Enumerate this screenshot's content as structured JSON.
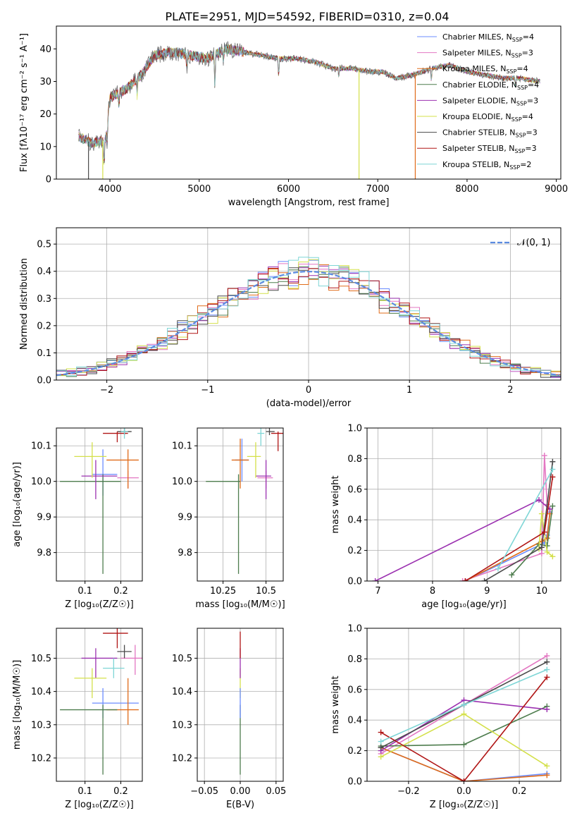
{
  "colors": {
    "chabrier_miles": "#6b8cff",
    "salpeter_miles": "#e377c2",
    "kroupa_miles": "#e06c1a",
    "chabrier_elodie": "#4e7d4e",
    "salpeter_elodie": "#9b30b0",
    "kroupa_elodie": "#d4e04a",
    "chabrier_stelib": "#4a4a4a",
    "salpeter_stelib": "#b01515",
    "kroupa_stelib": "#7fd6d6"
  },
  "chart_data": [
    {
      "id": "spectrum",
      "type": "line",
      "title": "PLATE=2951, MJD=54592, FIBERID=0310, z=0.04",
      "xlabel": "wavelength [Angstrom, rest frame]",
      "ylabel": "Flux [f$_\\lambda$10$^{-17}$ erg cm$^{-2}$ s$^{-1}$ A$^{-1}$]",
      "ylabel_display": "Flux [fλ10⁻¹⁷ erg cm⁻² s⁻¹ A⁻¹]",
      "xlim": [
        3400,
        9050
      ],
      "ylim": [
        0,
        47
      ],
      "xticks": [
        4000,
        5000,
        6000,
        7000,
        8000,
        9000
      ],
      "yticks": [
        0,
        10,
        20,
        30,
        40
      ],
      "grid": false,
      "legend_position": "top-right",
      "legend": [
        {
          "label": "Chabrier MILES, N",
          "sub": "SSP",
          "tail": "=4",
          "color_key": "chabrier_miles"
        },
        {
          "label": "Salpeter MILES, N",
          "sub": "SSP",
          "tail": "=3",
          "color_key": "salpeter_miles"
        },
        {
          "label": "Kroupa MILES, N",
          "sub": "SSP",
          "tail": "=4",
          "color_key": "kroupa_miles"
        },
        {
          "label": "Chabrier ELODIE, N",
          "sub": "SSP",
          "tail": "=4",
          "color_key": "chabrier_elodie"
        },
        {
          "label": "Salpeter ELODIE, N",
          "sub": "SSP",
          "tail": "=3",
          "color_key": "salpeter_elodie"
        },
        {
          "label": "Kroupa ELODIE, N",
          "sub": "SSP",
          "tail": "=4",
          "color_key": "kroupa_elodie"
        },
        {
          "label": "Chabrier STELIB, N",
          "sub": "SSP",
          "tail": "=3",
          "color_key": "chabrier_stelib"
        },
        {
          "label": "Salpeter STELIB, N",
          "sub": "SSP",
          "tail": "=3",
          "color_key": "salpeter_stelib"
        },
        {
          "label": "Kroupa STELIB, N",
          "sub": "SSP",
          "tail": "=2",
          "color_key": "kroupa_stelib"
        }
      ],
      "continuum": [
        [
          3650,
          13
        ],
        [
          3800,
          11
        ],
        [
          3950,
          12
        ],
        [
          4000,
          25
        ],
        [
          4200,
          28
        ],
        [
          4350,
          32
        ],
        [
          4500,
          38
        ],
        [
          4700,
          39
        ],
        [
          4900,
          38
        ],
        [
          5100,
          37
        ],
        [
          5300,
          40
        ],
        [
          5500,
          39
        ],
        [
          5700,
          38
        ],
        [
          5900,
          37
        ],
        [
          6100,
          37
        ],
        [
          6300,
          36
        ],
        [
          6500,
          34
        ],
        [
          6700,
          34
        ],
        [
          6900,
          33
        ],
        [
          7050,
          33
        ],
        [
          7200,
          31
        ],
        [
          7400,
          32
        ],
        [
          7600,
          34
        ],
        [
          7800,
          35
        ],
        [
          8000,
          33
        ],
        [
          8200,
          32
        ],
        [
          8400,
          31
        ],
        [
          8600,
          31
        ],
        [
          8800,
          30
        ]
      ],
      "spikes_to_zero": [
        {
          "x": 3760,
          "color_key": "chabrier_stelib"
        },
        {
          "x": 3920,
          "color_key": "kroupa_elodie"
        },
        {
          "x": 6790,
          "color_key": "kroupa_elodie"
        },
        {
          "x": 7420,
          "color_key": "kroupa_miles"
        }
      ]
    },
    {
      "id": "residuals",
      "type": "step-histogram",
      "xlabel": "(data-model)/error",
      "ylabel": "Normed distribution",
      "xlim": [
        -2.5,
        2.5
      ],
      "ylim": [
        0,
        0.56
      ],
      "xticks": [
        -2,
        -1,
        0,
        1,
        2
      ],
      "yticks": [
        0.0,
        0.1,
        0.2,
        0.3,
        0.4,
        0.5
      ],
      "grid": true,
      "legend_position": "top-right",
      "legend_label": "𝒩(0, 1)",
      "bin_width": 0.1,
      "reference_curve": {
        "type": "gaussian",
        "mean": 0,
        "sigma": 1,
        "color": "#5b8be0"
      }
    },
    {
      "id": "z-age",
      "type": "errorbar",
      "xlabel": "Z [log₁₀(Z/Z☉)]",
      "ylabel": "age  [log₁₀(age/yr)]",
      "xlim": [
        0.02,
        0.26
      ],
      "ylim": [
        9.72,
        10.15
      ],
      "xticks": [
        0.1,
        0.2
      ],
      "yticks": [
        9.8,
        9.9,
        10.0,
        10.1
      ],
      "grid": true,
      "points": [
        {
          "k": "chabrier_miles",
          "x": 0.15,
          "xe": [
            0.12,
            0.19
          ],
          "y": 10.02,
          "ye": [
            9.96,
            10.09
          ]
        },
        {
          "k": "salpeter_miles",
          "x": 0.22,
          "xe": [
            0.19,
            0.25
          ],
          "y": 10.01,
          "ye": [
            9.98,
            10.03
          ]
        },
        {
          "k": "kroupa_miles",
          "x": 0.22,
          "xe": [
            0.16,
            0.25
          ],
          "y": 10.06,
          "ye": [
            9.98,
            10.09
          ]
        },
        {
          "k": "chabrier_elodie",
          "x": 0.15,
          "xe": [
            0.03,
            0.2
          ],
          "y": 10.0,
          "ye": [
            9.74,
            10.02
          ]
        },
        {
          "k": "salpeter_elodie",
          "x": 0.13,
          "xe": [
            0.09,
            0.19
          ],
          "y": 10.015,
          "ye": [
            9.95,
            10.06
          ]
        },
        {
          "k": "kroupa_elodie",
          "x": 0.12,
          "xe": [
            0.07,
            0.16
          ],
          "y": 10.07,
          "ye": [
            10.01,
            10.11
          ]
        },
        {
          "k": "chabrier_stelib",
          "x": 0.21,
          "xe": [
            0.19,
            0.23
          ],
          "y": 10.14,
          "ye": [
            10.13,
            10.15
          ]
        },
        {
          "k": "salpeter_stelib",
          "x": 0.19,
          "xe": [
            0.15,
            0.22
          ],
          "y": 10.135,
          "ye": [
            10.11,
            10.14
          ]
        },
        {
          "k": "kroupa_stelib",
          "x": 0.21,
          "xe": [
            0.2,
            0.22
          ],
          "y": 10.14,
          "ye": [
            10.12,
            10.15
          ]
        }
      ]
    },
    {
      "id": "mass-age",
      "type": "errorbar",
      "xlabel": "mass [log₁₀(M/M☉)]",
      "ylabel": "",
      "xlim": [
        10.1,
        10.6
      ],
      "ylim": [
        9.72,
        10.15
      ],
      "xticks": [
        10.25,
        10.5
      ],
      "yticks": [
        9.8,
        9.9,
        10.0,
        10.1
      ],
      "grid": true,
      "points": [
        {
          "k": "chabrier_miles",
          "x": 10.36,
          "xe": [
            10.32,
            10.4
          ],
          "y": 10.06,
          "ye": [
            10.0,
            10.12
          ]
        },
        {
          "k": "salpeter_miles",
          "x": 10.5,
          "xe": [
            10.45,
            10.54
          ],
          "y": 10.01,
          "ye": [
            9.98,
            10.03
          ]
        },
        {
          "k": "kroupa_miles",
          "x": 10.35,
          "xe": [
            10.3,
            10.4
          ],
          "y": 10.06,
          "ye": [
            9.98,
            10.12
          ]
        },
        {
          "k": "chabrier_elodie",
          "x": 10.34,
          "xe": [
            10.15,
            10.35
          ],
          "y": 10.0,
          "ye": [
            9.74,
            10.02
          ]
        },
        {
          "k": "salpeter_elodie",
          "x": 10.5,
          "xe": [
            10.44,
            10.53
          ],
          "y": 10.015,
          "ye": [
            9.95,
            10.06
          ]
        },
        {
          "k": "kroupa_elodie",
          "x": 10.44,
          "xe": [
            10.39,
            10.47
          ],
          "y": 10.07,
          "ye": [
            10.01,
            10.11
          ]
        },
        {
          "k": "chabrier_stelib",
          "x": 10.52,
          "xe": [
            10.5,
            10.55
          ],
          "y": 10.14,
          "ye": [
            10.13,
            10.15
          ]
        },
        {
          "k": "salpeter_stelib",
          "x": 10.57,
          "xe": [
            10.53,
            10.6
          ],
          "y": 10.135,
          "ye": [
            10.085,
            10.14
          ]
        },
        {
          "k": "kroupa_stelib",
          "x": 10.47,
          "xe": [
            10.45,
            10.49
          ],
          "y": 10.135,
          "ye": [
            10.1,
            10.15
          ]
        }
      ]
    },
    {
      "id": "age-weight",
      "type": "line",
      "xlabel": "age  [log₁₀(age/yr)]",
      "ylabel": "mass weight",
      "xlim": [
        6.8,
        10.35
      ],
      "ylim": [
        0,
        1.0
      ],
      "xticks": [
        7,
        8,
        9,
        10
      ],
      "yticks": [
        0.0,
        0.2,
        0.4,
        0.6,
        0.8,
        1.0
      ],
      "grid": true,
      "series": [
        {
          "k": "chabrier_miles",
          "x": [
            8.6,
            10.05,
            10.1,
            10.15
          ],
          "y": [
            0.0,
            0.25,
            0.3,
            0.45
          ]
        },
        {
          "k": "salpeter_miles",
          "x": [
            8.55,
            10.0,
            10.05,
            10.1
          ],
          "y": [
            0.0,
            0.18,
            0.82,
            0.5
          ]
        },
        {
          "k": "kroupa_miles",
          "x": [
            8.6,
            10.0,
            10.1,
            10.15
          ],
          "y": [
            0.0,
            0.26,
            0.28,
            0.44
          ]
        },
        {
          "k": "chabrier_elodie",
          "x": [
            9.45,
            9.95,
            10.1,
            10.2
          ],
          "y": [
            0.04,
            0.24,
            0.23,
            0.49
          ]
        },
        {
          "k": "salpeter_elodie",
          "x": [
            6.95,
            9.95,
            10.15
          ],
          "y": [
            0.0,
            0.53,
            0.47
          ]
        },
        {
          "k": "kroupa_elodie",
          "x": [
            9.95,
            10.0,
            10.1,
            10.2
          ],
          "y": [
            0.21,
            0.44,
            0.19,
            0.16
          ]
        },
        {
          "k": "chabrier_stelib",
          "x": [
            8.95,
            10.0,
            10.2
          ],
          "y": [
            0.0,
            0.22,
            0.78
          ]
        },
        {
          "k": "salpeter_stelib",
          "x": [
            8.6,
            10.05,
            10.2
          ],
          "y": [
            0.0,
            0.32,
            0.68
          ]
        },
        {
          "k": "kroupa_stelib",
          "x": [
            9.2,
            10.2
          ],
          "y": [
            0.08,
            0.73
          ]
        }
      ]
    },
    {
      "id": "z-mass",
      "type": "errorbar",
      "xlabel": "Z [log₁₀(Z/Z☉)]",
      "ylabel": "mass [log₁₀(M/M☉)]",
      "xlim": [
        0.02,
        0.26
      ],
      "ylim": [
        10.13,
        10.59
      ],
      "xticks": [
        0.1,
        0.2
      ],
      "yticks": [
        10.2,
        10.3,
        10.4,
        10.5
      ],
      "grid": true,
      "points": [
        {
          "k": "chabrier_miles",
          "x": 0.15,
          "xe": [
            0.12,
            0.25
          ],
          "y": 10.365,
          "ye": [
            10.32,
            10.41
          ]
        },
        {
          "k": "salpeter_miles",
          "x": 0.24,
          "xe": [
            0.2,
            0.26
          ],
          "y": 10.5,
          "ye": [
            10.45,
            10.54
          ]
        },
        {
          "k": "kroupa_miles",
          "x": 0.22,
          "xe": [
            0.16,
            0.25
          ],
          "y": 10.345,
          "ye": [
            10.3,
            10.44
          ]
        },
        {
          "k": "chabrier_elodie",
          "x": 0.15,
          "xe": [
            0.03,
            0.19
          ],
          "y": 10.345,
          "ye": [
            10.15,
            10.36
          ]
        },
        {
          "k": "salpeter_elodie",
          "x": 0.13,
          "xe": [
            0.09,
            0.19
          ],
          "y": 10.5,
          "ye": [
            10.44,
            10.53
          ]
        },
        {
          "k": "kroupa_elodie",
          "x": 0.12,
          "xe": [
            0.07,
            0.16
          ],
          "y": 10.44,
          "ye": [
            10.38,
            10.47
          ]
        },
        {
          "k": "chabrier_stelib",
          "x": 0.21,
          "xe": [
            0.19,
            0.23
          ],
          "y": 10.52,
          "ye": [
            10.5,
            10.54
          ]
        },
        {
          "k": "salpeter_stelib",
          "x": 0.19,
          "xe": [
            0.15,
            0.22
          ],
          "y": 10.575,
          "ye": [
            10.53,
            10.59
          ]
        },
        {
          "k": "kroupa_stelib",
          "x": 0.18,
          "xe": [
            0.15,
            0.21
          ],
          "y": 10.47,
          "ye": [
            10.44,
            10.5
          ]
        }
      ]
    },
    {
      "id": "ebv-mass",
      "type": "errorbar",
      "xlabel": "E(B-V)",
      "ylabel": "",
      "xlim": [
        -0.06,
        0.06
      ],
      "ylim": [
        10.13,
        10.59
      ],
      "xticks": [
        -0.05,
        0.0,
        0.05
      ],
      "xtick_labels": [
        "−0.05",
        "0.00",
        "0.05"
      ],
      "yticks": [
        10.2,
        10.3,
        10.4,
        10.5
      ],
      "grid": true,
      "points": [
        {
          "k": "kroupa_elodie",
          "x": 0.0,
          "xe": [
            0.0,
            0.0
          ],
          "y": 10.44,
          "ye": [
            10.38,
            10.47
          ]
        },
        {
          "k": "salpeter_elodie",
          "x": 0.0,
          "xe": [
            0.0,
            0.0
          ],
          "y": 10.5,
          "ye": [
            10.44,
            10.53
          ]
        },
        {
          "k": "chabrier_elodie",
          "x": 0.0,
          "xe": [
            0.0,
            0.0
          ],
          "y": 10.345,
          "ye": [
            10.15,
            10.36
          ]
        },
        {
          "k": "salpeter_stelib",
          "x": 0.0,
          "xe": [
            0.0,
            0.0
          ],
          "y": 10.55,
          "ye": [
            10.5,
            10.58
          ]
        },
        {
          "k": "chabrier_miles",
          "x": 0.0,
          "xe": [
            0.0,
            0.0
          ],
          "y": 10.365,
          "ye": [
            10.32,
            10.41
          ]
        }
      ]
    },
    {
      "id": "z-weight",
      "type": "line",
      "xlabel": "Z [log₁₀(Z/Z☉)]",
      "ylabel": "mass weight",
      "xlim": [
        -0.35,
        0.35
      ],
      "ylim": [
        0,
        1.0
      ],
      "xticks": [
        -0.2,
        0.0,
        0.2
      ],
      "xtick_labels": [
        "−0.2",
        "0.0",
        "0.2"
      ],
      "yticks": [
        0.0,
        0.2,
        0.4,
        0.6,
        0.8,
        1.0
      ],
      "grid": true,
      "series": [
        {
          "k": "chabrier_miles",
          "x": [
            -0.3,
            0.0,
            0.3
          ],
          "y": [
            0.22,
            0.0,
            0.05
          ]
        },
        {
          "k": "salpeter_miles",
          "x": [
            -0.3,
            0.0,
            0.3
          ],
          "y": [
            0.18,
            0.5,
            0.82
          ]
        },
        {
          "k": "kroupa_miles",
          "x": [
            -0.3,
            0.0,
            0.3
          ],
          "y": [
            0.22,
            0.0,
            0.04
          ]
        },
        {
          "k": "chabrier_elodie",
          "x": [
            -0.3,
            0.0,
            0.3
          ],
          "y": [
            0.23,
            0.24,
            0.49
          ]
        },
        {
          "k": "salpeter_elodie",
          "x": [
            -0.3,
            0.0,
            0.3
          ],
          "y": [
            0.2,
            0.53,
            0.47
          ]
        },
        {
          "k": "kroupa_elodie",
          "x": [
            -0.3,
            0.0,
            0.3
          ],
          "y": [
            0.16,
            0.44,
            0.1
          ]
        },
        {
          "k": "chabrier_stelib",
          "x": [
            -0.3,
            0.0,
            0.3
          ],
          "y": [
            0.22,
            0.5,
            0.78
          ]
        },
        {
          "k": "salpeter_stelib",
          "x": [
            -0.3,
            0.0,
            0.3
          ],
          "y": [
            0.32,
            0.0,
            0.68
          ]
        },
        {
          "k": "kroupa_stelib",
          "x": [
            -0.3,
            0.0,
            0.3
          ],
          "y": [
            0.26,
            0.5,
            0.73
          ]
        }
      ]
    }
  ]
}
